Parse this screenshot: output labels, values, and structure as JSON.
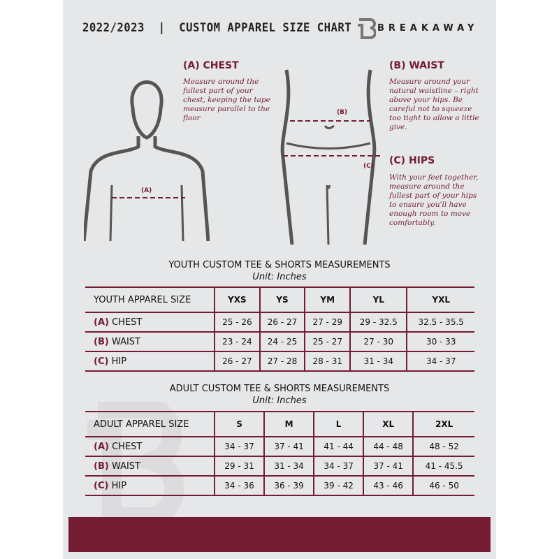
{
  "header": {
    "title": "2022/2023  |  CUSTOM APPAREL SIZE CHART",
    "brand": "BREAKAWAY"
  },
  "chest": {
    "heading": "(A) CHEST",
    "text": "Measure around the fullest part of your chest, keeping the tape measure parallel to the floor",
    "marker": "(A)"
  },
  "waist": {
    "heading": "(B) WAIST",
    "text": "Measure around your natural waistline – right above your hips. Be careful not to squeeze too tight to allow a little give.",
    "marker": "(B)"
  },
  "hips": {
    "heading": "(C) HIPS",
    "text": "With your feet together, measure around the fullest part of your hips to ensure you'll have enough room to move comfortably.",
    "marker": "(C)"
  },
  "youth": {
    "title": "YOUTH CUSTOM TEE & SHORTS MEASUREMENTS",
    "unit": "Unit: Inches",
    "header": [
      "YOUTH APPAREL SIZE",
      "YXS",
      "YS",
      "YM",
      "YL",
      "YXL"
    ],
    "rows": [
      {
        "letter": "(A)",
        "name": "CHEST",
        "values": [
          "25 - 26",
          "26 - 27",
          "27 - 29",
          "29 - 32.5",
          "32.5 - 35.5"
        ]
      },
      {
        "letter": "(B)",
        "name": "WAIST",
        "values": [
          "23 - 24",
          "24 - 25",
          "25 - 27",
          "27 - 30",
          "30 - 33"
        ]
      },
      {
        "letter": "(C)",
        "name": "HIP",
        "values": [
          "26 - 27",
          "27 - 28",
          "28 - 31",
          "31 - 34",
          "34 - 37"
        ]
      }
    ]
  },
  "adult": {
    "title": "ADULT CUSTOM TEE & SHORTS MEASUREMENTS",
    "unit": "Unit: Inches",
    "header": [
      "ADULT APPAREL SIZE",
      "S",
      "M",
      "L",
      "XL",
      "2XL"
    ],
    "rows": [
      {
        "letter": "(A)",
        "name": "CHEST",
        "values": [
          "34 - 37",
          "37 - 41",
          "41 - 44",
          "44 - 48",
          "48 - 52"
        ]
      },
      {
        "letter": "(B)",
        "name": "WAIST",
        "values": [
          "29 - 31",
          "31 - 34",
          "34 - 37",
          "37 - 41",
          "41 - 45.5"
        ]
      },
      {
        "letter": "(C)",
        "name": "HIP",
        "values": [
          "34 - 36",
          "36 - 39",
          "39 - 42",
          "43 - 46",
          "46 - 50"
        ]
      }
    ]
  },
  "colors": {
    "accent": "#731c32",
    "background": "#e6e7e8"
  }
}
